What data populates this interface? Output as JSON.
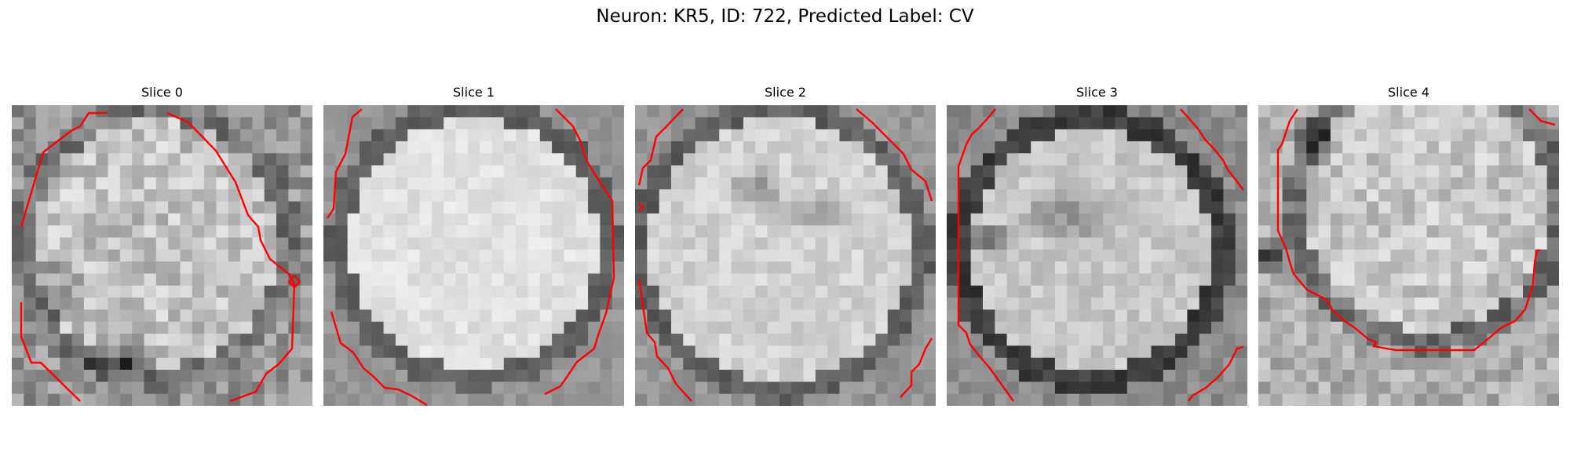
{
  "figure": {
    "title": "Neuron: KR5, ID: 722, Predicted Label: CV"
  },
  "panels": [
    {
      "title": "Slice 0",
      "image_name": "slice-0-grayscale-pixels"
    },
    {
      "title": "Slice 1",
      "image_name": "slice-1-grayscale-pixels"
    },
    {
      "title": "Slice 2",
      "image_name": "slice-2-grayscale-pixels"
    },
    {
      "title": "Slice 3",
      "image_name": "slice-3-grayscale-pixels"
    },
    {
      "title": "Slice 4",
      "image_name": "slice-4-grayscale-pixels"
    }
  ],
  "colors": {
    "contour": "#ff0000",
    "background": "#ffffff"
  }
}
